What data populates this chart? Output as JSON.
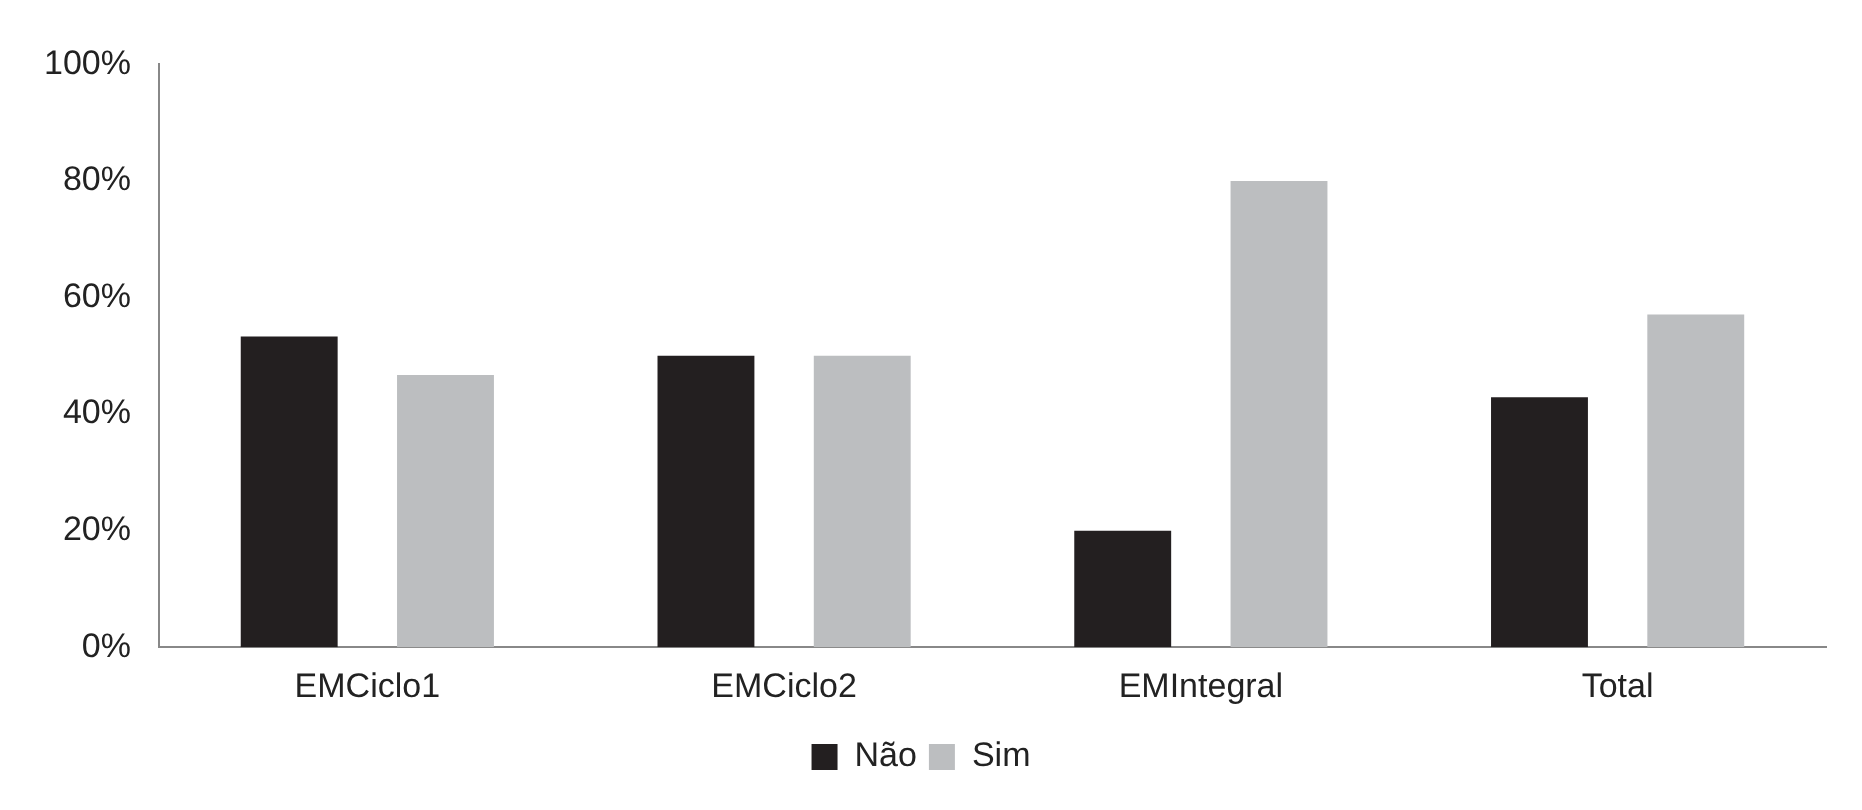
{
  "chart_data": {
    "type": "bar",
    "categories": [
      "EMCiclo1",
      "EMCiclo2",
      "EMIntegral",
      "Total"
    ],
    "series": [
      {
        "name": "Não",
        "color": "#231f20",
        "values": [
          53.3,
          50,
          20,
          42.9
        ]
      },
      {
        "name": "Sim",
        "color": "#bcbec0",
        "values": [
          46.7,
          50,
          80,
          57.1
        ]
      }
    ],
    "ylim": [
      0,
      100
    ],
    "yticks": [
      {
        "value": 0,
        "label": "0%"
      },
      {
        "value": 20,
        "label": "20%"
      },
      {
        "value": 40,
        "label": "40%"
      },
      {
        "value": 60,
        "label": "60%"
      },
      {
        "value": 80,
        "label": "80%"
      },
      {
        "value": 100,
        "label": "100%"
      }
    ],
    "grid": false,
    "legend": "bottom"
  }
}
